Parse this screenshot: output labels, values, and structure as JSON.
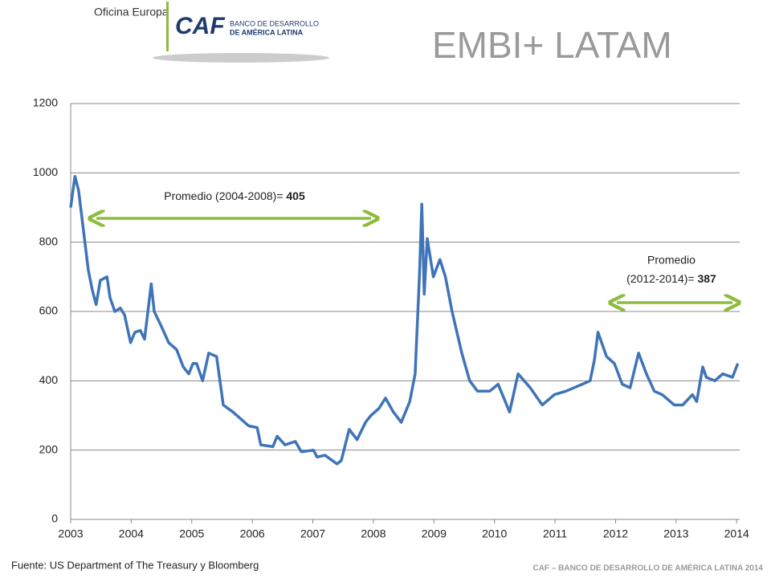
{
  "header": {
    "office": "Oficina Europa",
    "logo": "CAF",
    "logo_line1": "BANCO DE DESARROLLO",
    "logo_line2": "DE AMÉRICA LATINA"
  },
  "chart_data": {
    "type": "line",
    "title": "EMBI+ LATAM",
    "x": [
      2003.0,
      2003.07,
      2003.13,
      2003.2,
      2003.29,
      2003.36,
      2003.42,
      2003.49,
      2003.6,
      2003.65,
      2003.73,
      2003.82,
      2003.89,
      2003.99,
      2004.06,
      2004.15,
      2004.22,
      2004.33,
      2004.38,
      2004.49,
      2004.62,
      2004.75,
      2004.86,
      2004.95,
      2005.02,
      2005.08,
      2005.18,
      2005.28,
      2005.41,
      2005.52,
      2005.68,
      2005.81,
      2005.94,
      2006.08,
      2006.14,
      2006.34,
      2006.41,
      2006.54,
      2006.71,
      2006.81,
      2007.01,
      2007.07,
      2007.2,
      2007.4,
      2007.47,
      2007.6,
      2007.73,
      2007.87,
      2007.96,
      2008.09,
      2008.2,
      2008.33,
      2008.46,
      2008.6,
      2008.69,
      2008.76,
      2008.8,
      2008.84,
      2008.89,
      2008.99,
      2009.1,
      2009.19,
      2009.3,
      2009.46,
      2009.59,
      2009.72,
      2009.92,
      2010.06,
      2010.25,
      2010.39,
      2010.59,
      2010.79,
      2010.99,
      2011.18,
      2011.45,
      2011.58,
      2011.65,
      2011.71,
      2011.85,
      2011.98,
      2012.11,
      2012.24,
      2012.38,
      2012.51,
      2012.64,
      2012.77,
      2012.97,
      2013.11,
      2013.27,
      2013.34,
      2013.44,
      2013.5,
      2013.64,
      2013.77,
      2013.93,
      2014.02
    ],
    "series": [
      {
        "name": "EMBI+ LATAM",
        "color": "#3f74b8",
        "values": [
          900,
          990,
          950,
          850,
          720,
          660,
          620,
          690,
          700,
          640,
          600,
          610,
          590,
          510,
          540,
          545,
          520,
          680,
          600,
          560,
          510,
          490,
          440,
          420,
          450,
          450,
          400,
          480,
          470,
          330,
          310,
          290,
          270,
          265,
          215,
          210,
          240,
          215,
          225,
          195,
          200,
          180,
          185,
          160,
          170,
          260,
          230,
          280,
          300,
          320,
          350,
          310,
          280,
          340,
          420,
          700,
          910,
          650,
          810,
          700,
          750,
          700,
          600,
          480,
          400,
          370,
          370,
          390,
          310,
          420,
          380,
          330,
          360,
          370,
          390,
          400,
          460,
          540,
          470,
          450,
          390,
          380,
          480,
          420,
          370,
          360,
          330,
          330,
          360,
          340,
          440,
          410,
          400,
          420,
          410,
          450
        ]
      }
    ],
    "xlim": [
      2003,
      2014.05
    ],
    "xticks": [
      2003,
      2004,
      2005,
      2006,
      2007,
      2008,
      2009,
      2010,
      2011,
      2012,
      2013,
      2014
    ],
    "ylim": [
      0,
      1200
    ],
    "yticks": [
      0,
      200,
      400,
      600,
      800,
      1000,
      1200
    ],
    "grid": true,
    "annotations": [
      {
        "text": "Promedio (2004-2008)= ",
        "value": 405
      },
      {
        "text_line1": "Promedio",
        "text": "(2012-2014)= ",
        "value": 387
      }
    ],
    "source": "Fuente: US Department of The Treasury y Bloomberg"
  },
  "footer": "CAF – BANCO DE DESARROLLO DE AMÉRICA LATINA 2014"
}
